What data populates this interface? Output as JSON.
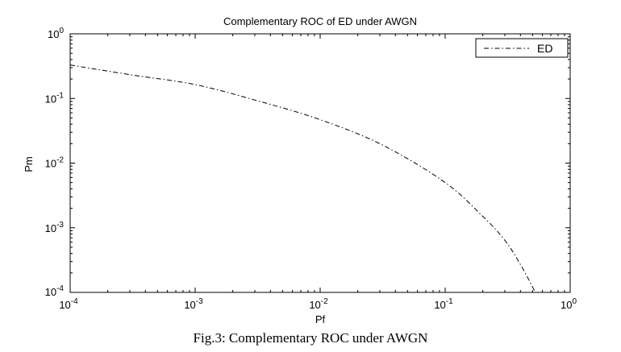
{
  "chart_data": {
    "type": "line",
    "title": "Complementary ROC of ED under AWGN",
    "xlabel": "Pf",
    "ylabel": "Pm",
    "xscale": "log",
    "yscale": "log",
    "xlim": [
      0.0001,
      1
    ],
    "ylim": [
      0.0001,
      1
    ],
    "xticks": [
      {
        "exp": "-4"
      },
      {
        "exp": "-3"
      },
      {
        "exp": "-2"
      },
      {
        "exp": "-1"
      },
      {
        "exp": "0"
      }
    ],
    "yticks": [
      {
        "exp": "-4"
      },
      {
        "exp": "-3"
      },
      {
        "exp": "-2"
      },
      {
        "exp": "-1"
      },
      {
        "exp": "0"
      }
    ],
    "tick_base": "10",
    "grid": false,
    "legend": {
      "position": "top-right",
      "entries": [
        "ED"
      ]
    },
    "series": [
      {
        "name": "ED",
        "style": "dash-dot",
        "color": "#000000",
        "x": [
          0.0001,
          0.000316,
          0.001,
          0.00316,
          0.01,
          0.0316,
          0.1,
          0.2,
          0.3,
          0.4,
          0.52
        ],
        "y": [
          0.33,
          0.23,
          0.164,
          0.092,
          0.047,
          0.019,
          0.005,
          0.0015,
          0.00064,
          0.00027,
          0.000105
        ]
      }
    ]
  },
  "caption": "Fig.3: Complementary ROC under AWGN"
}
